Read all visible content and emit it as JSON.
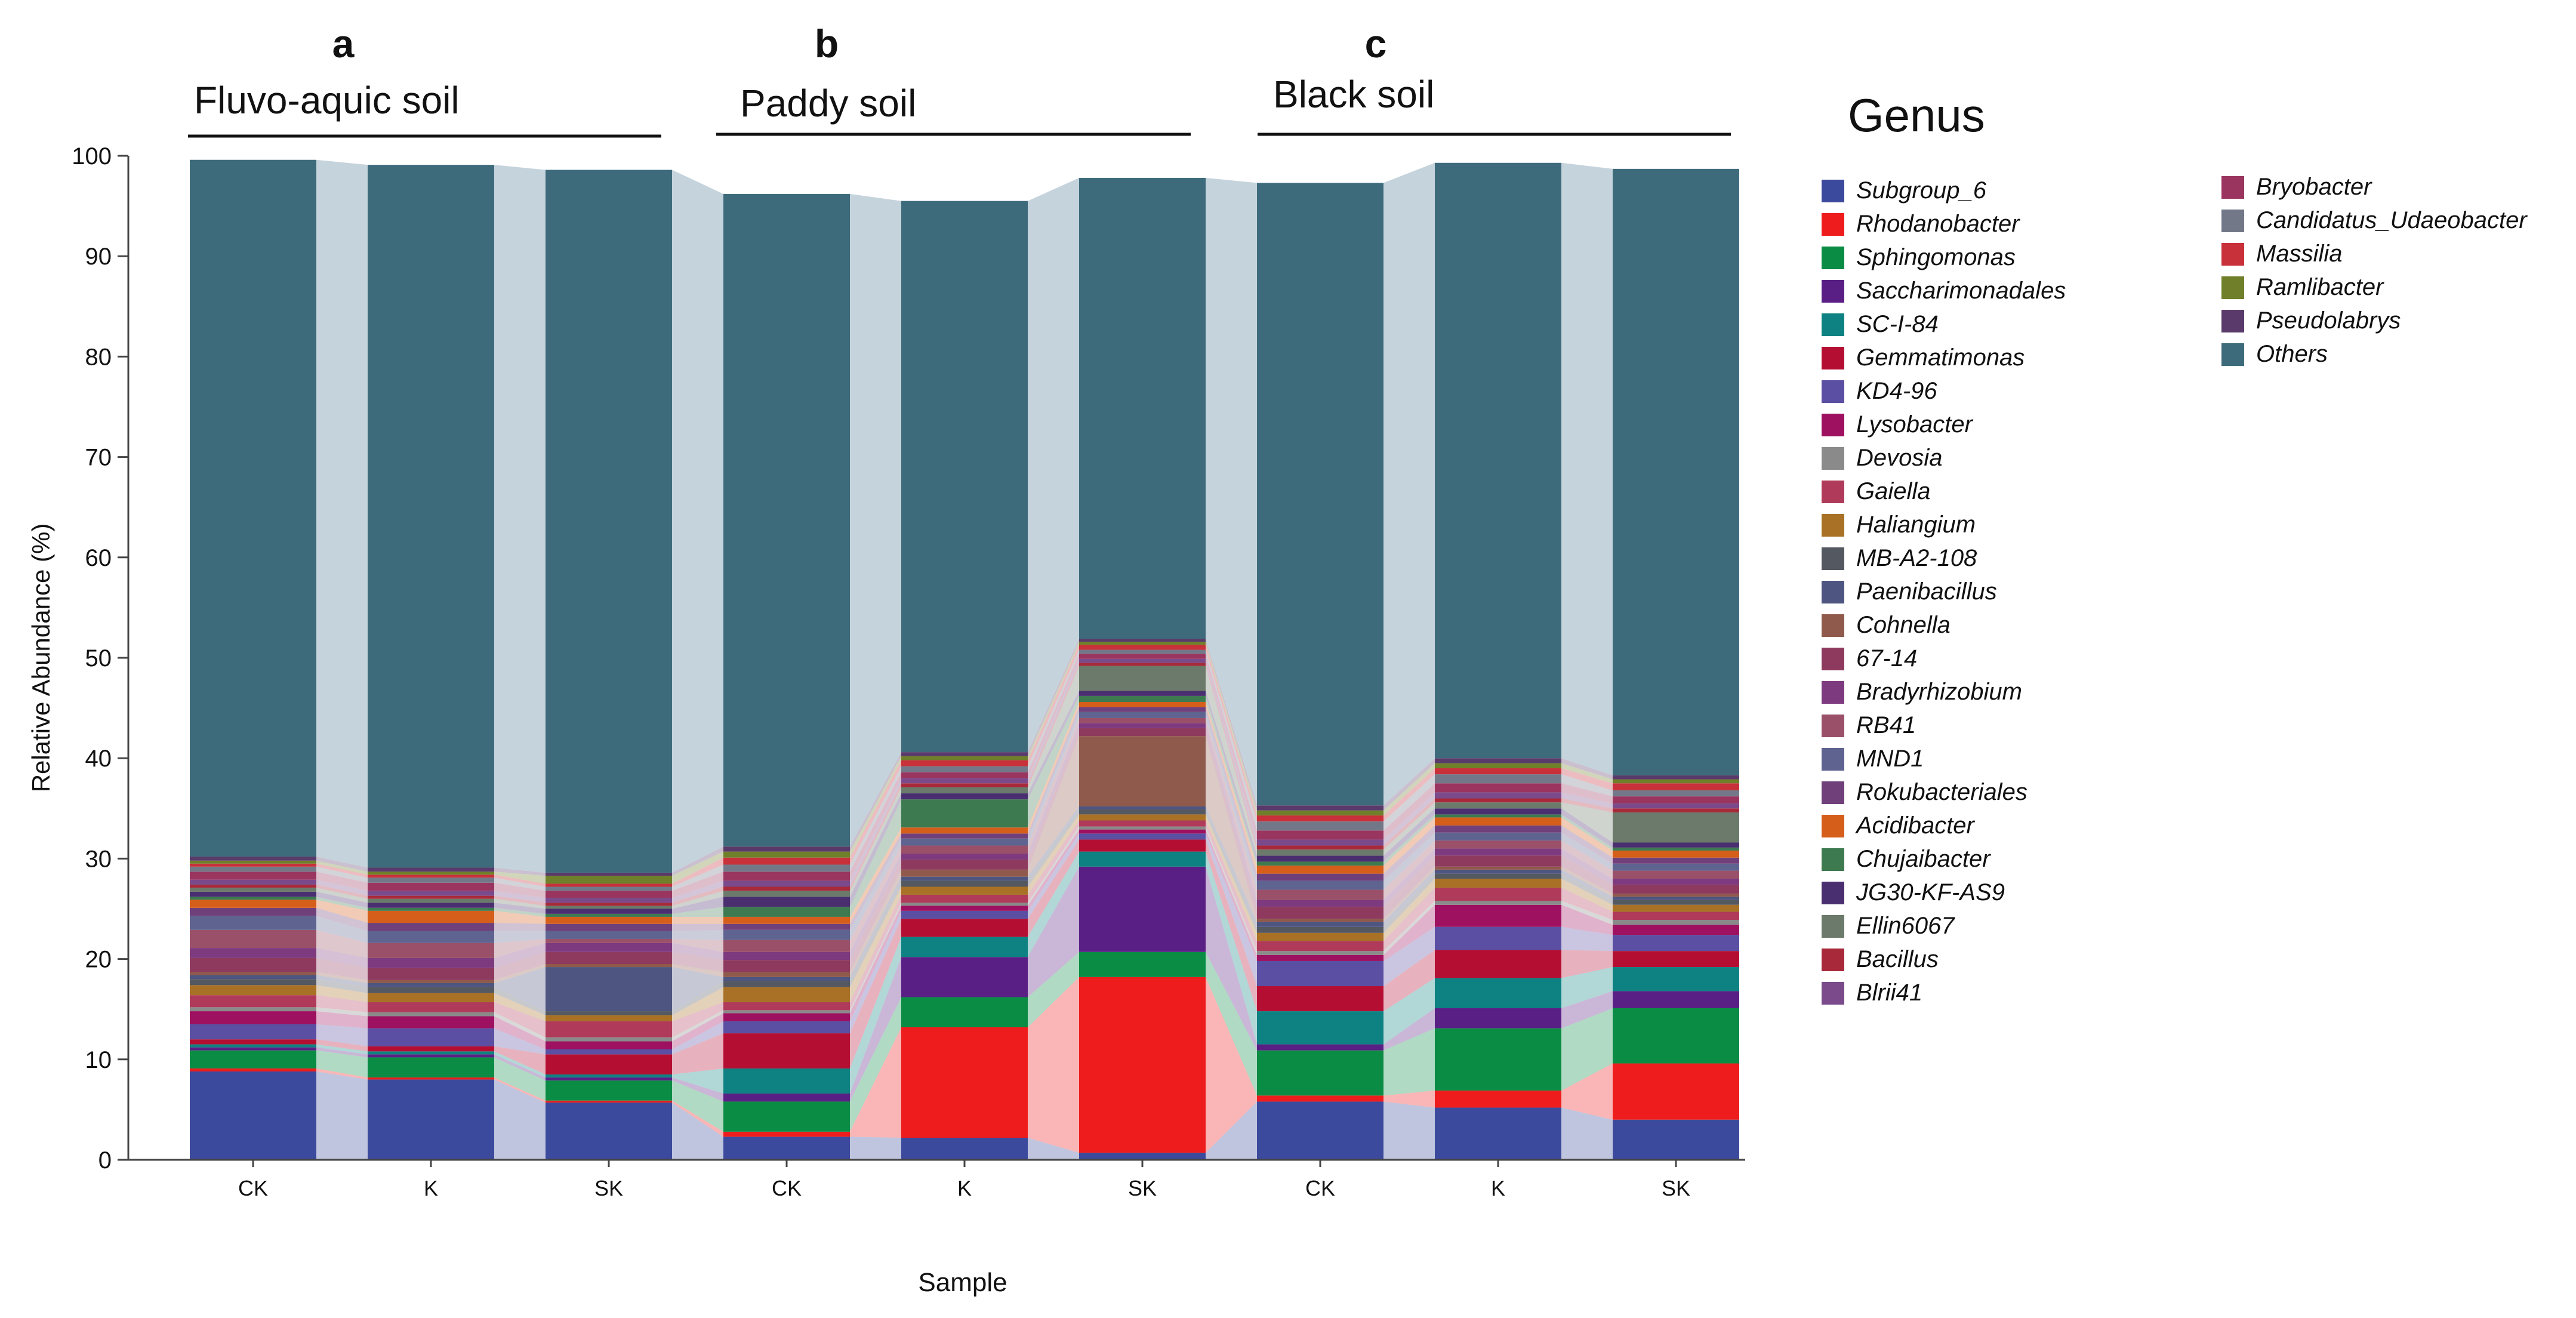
{
  "chart_data": {
    "type": "stacked-bar",
    "title": "",
    "xlabel": "Sample",
    "ylabel": "Relative Abundance (%)",
    "ylim": [
      0,
      100
    ],
    "yticks": [
      0,
      10,
      20,
      30,
      40,
      50,
      60,
      70,
      80,
      90,
      100
    ],
    "legend_title": "Genus",
    "legend_position": "right",
    "panels": [
      {
        "letter": "a",
        "title": "Fluvo-aquic soil"
      },
      {
        "letter": "b",
        "title": "Paddy soil"
      },
      {
        "letter": "c",
        "title": "Black soil"
      }
    ],
    "categories": [
      "CK",
      "K",
      "SK",
      "CK",
      "K",
      "SK",
      "CK",
      "K",
      "SK"
    ],
    "series": [
      {
        "name": "Subgroup_6",
        "color": "#3b4a9c",
        "values": [
          8.8,
          8.0,
          5.7,
          2.3,
          2.2,
          0.7,
          5.8,
          5.2,
          4.0
        ]
      },
      {
        "name": "Rhodanobacter",
        "color": "#ee1c1c",
        "values": [
          0.3,
          0.2,
          0.2,
          0.5,
          11.0,
          17.5,
          0.6,
          1.7,
          5.6
        ]
      },
      {
        "name": "Sphingomonas",
        "color": "#0a8c44",
        "values": [
          1.8,
          2.0,
          2.0,
          3.0,
          3.0,
          2.5,
          4.5,
          6.2,
          5.5
        ]
      },
      {
        "name": "Saccharimonadales",
        "color": "#5a1f85",
        "values": [
          0.3,
          0.3,
          0.3,
          0.8,
          4.0,
          8.5,
          0.6,
          2.0,
          1.7
        ]
      },
      {
        "name": "SC-I-84",
        "color": "#0e8282",
        "values": [
          0.3,
          0.3,
          0.3,
          2.5,
          2.0,
          1.5,
          3.3,
          3.0,
          2.4
        ]
      },
      {
        "name": "Gemmatimonas",
        "color": "#b40f33",
        "values": [
          0.5,
          0.5,
          2.0,
          3.5,
          1.8,
          1.2,
          2.5,
          2.8,
          1.6
        ]
      },
      {
        "name": "KD4-96",
        "color": "#5a4fa2",
        "values": [
          1.5,
          1.8,
          0.5,
          1.2,
          0.8,
          0.6,
          2.5,
          2.3,
          1.6
        ]
      },
      {
        "name": "Lysobacter",
        "color": "#9e1060",
        "values": [
          1.3,
          1.2,
          0.8,
          0.8,
          0.5,
          0.4,
          0.6,
          2.2,
          1.0
        ]
      },
      {
        "name": "Devosia",
        "color": "#8a8a8a",
        "values": [
          0.4,
          0.4,
          0.4,
          0.3,
          0.3,
          0.3,
          0.4,
          0.4,
          0.5
        ]
      },
      {
        "name": "Gaiella",
        "color": "#b03a5a",
        "values": [
          1.2,
          1.0,
          1.6,
          0.8,
          0.8,
          0.6,
          1.0,
          1.3,
          0.8
        ]
      },
      {
        "name": "Haliangium",
        "color": "#a87125",
        "values": [
          1.0,
          0.9,
          0.6,
          1.5,
          0.8,
          0.6,
          0.8,
          0.9,
          0.7
        ]
      },
      {
        "name": "MB-A2-108",
        "color": "#545860",
        "values": [
          0.6,
          0.6,
          0.4,
          0.6,
          0.6,
          0.5,
          0.6,
          0.5,
          0.5
        ]
      },
      {
        "name": "Paenibacillus",
        "color": "#4d5580",
        "values": [
          0.4,
          0.4,
          4.4,
          0.4,
          0.4,
          0.3,
          0.5,
          0.4,
          0.3
        ]
      },
      {
        "name": "Cohnella",
        "color": "#8f5a4b",
        "values": [
          0.3,
          0.3,
          0.3,
          0.5,
          0.7,
          7.0,
          0.3,
          0.3,
          0.3
        ]
      },
      {
        "name": "67-14",
        "color": "#8e3a5e",
        "values": [
          1.4,
          1.2,
          1.2,
          1.2,
          1.0,
          0.8,
          1.2,
          1.1,
          0.9
        ]
      },
      {
        "name": "Bradyrhizobium",
        "color": "#7e3a7e",
        "values": [
          1.0,
          1.0,
          0.9,
          0.8,
          0.6,
          0.5,
          0.7,
          0.7,
          0.6
        ]
      },
      {
        "name": "RB41",
        "color": "#9a5068",
        "values": [
          1.8,
          1.5,
          0.4,
          1.2,
          0.8,
          0.5,
          1.0,
          0.8,
          0.8
        ]
      },
      {
        "name": "MND1",
        "color": "#5e6390",
        "values": [
          1.4,
          1.2,
          0.8,
          1.0,
          0.7,
          0.6,
          0.9,
          0.8,
          0.7
        ]
      },
      {
        "name": "Rokubacteriales",
        "color": "#70407a",
        "values": [
          0.8,
          0.8,
          0.7,
          0.6,
          0.5,
          0.5,
          0.7,
          0.7,
          0.6
        ]
      },
      {
        "name": "Acidibacter",
        "color": "#d55e1a",
        "values": [
          0.8,
          1.2,
          0.7,
          0.7,
          0.6,
          0.5,
          0.8,
          0.8,
          0.7
        ]
      },
      {
        "name": "Chujaibacter",
        "color": "#3e7a50",
        "values": [
          0.3,
          0.3,
          0.3,
          1.0,
          2.8,
          0.6,
          0.4,
          0.3,
          0.3
        ]
      },
      {
        "name": "JG30-KF-AS9",
        "color": "#4a2f70",
        "values": [
          0.5,
          0.5,
          0.5,
          1.0,
          0.6,
          0.5,
          0.6,
          0.6,
          0.5
        ]
      },
      {
        "name": "Ellin6067",
        "color": "#6b7a6a",
        "values": [
          0.4,
          0.4,
          0.3,
          0.6,
          0.6,
          2.5,
          0.6,
          0.6,
          3.0
        ]
      },
      {
        "name": "Bacillus",
        "color": "#a82a3a",
        "values": [
          0.3,
          0.3,
          0.3,
          0.4,
          0.4,
          0.3,
          0.4,
          0.4,
          0.4
        ]
      },
      {
        "name": "Blrii41",
        "color": "#7a4a8a",
        "values": [
          0.5,
          0.5,
          0.5,
          0.6,
          0.5,
          0.4,
          0.6,
          0.6,
          0.5
        ]
      },
      {
        "name": "Bryobacter",
        "color": "#9a3560",
        "values": [
          0.8,
          0.8,
          0.7,
          0.9,
          0.6,
          0.5,
          0.9,
          0.9,
          0.7
        ]
      },
      {
        "name": "Candidatus_Udaeobacter",
        "color": "#737888",
        "values": [
          0.5,
          0.5,
          0.4,
          0.7,
          0.6,
          0.4,
          0.9,
          0.9,
          0.6
        ]
      },
      {
        "name": "Massilia",
        "color": "#c8303a",
        "values": [
          0.3,
          0.3,
          0.3,
          0.7,
          0.6,
          0.5,
          0.6,
          0.6,
          0.7
        ]
      },
      {
        "name": "Ramlibacter",
        "color": "#6f7f2a",
        "values": [
          0.3,
          0.3,
          0.8,
          0.6,
          0.4,
          0.3,
          0.5,
          0.5,
          0.4
        ]
      },
      {
        "name": "Pseudolabrys",
        "color": "#5a3a6a",
        "values": [
          0.4,
          0.4,
          0.3,
          0.5,
          0.4,
          0.3,
          0.5,
          0.5,
          0.4
        ]
      },
      {
        "name": "Others",
        "color": "#3e6b7c",
        "values": [
          69.4,
          70.0,
          70.0,
          65.0,
          54.9,
          45.9,
          62.0,
          59.3,
          60.4
        ]
      }
    ]
  }
}
